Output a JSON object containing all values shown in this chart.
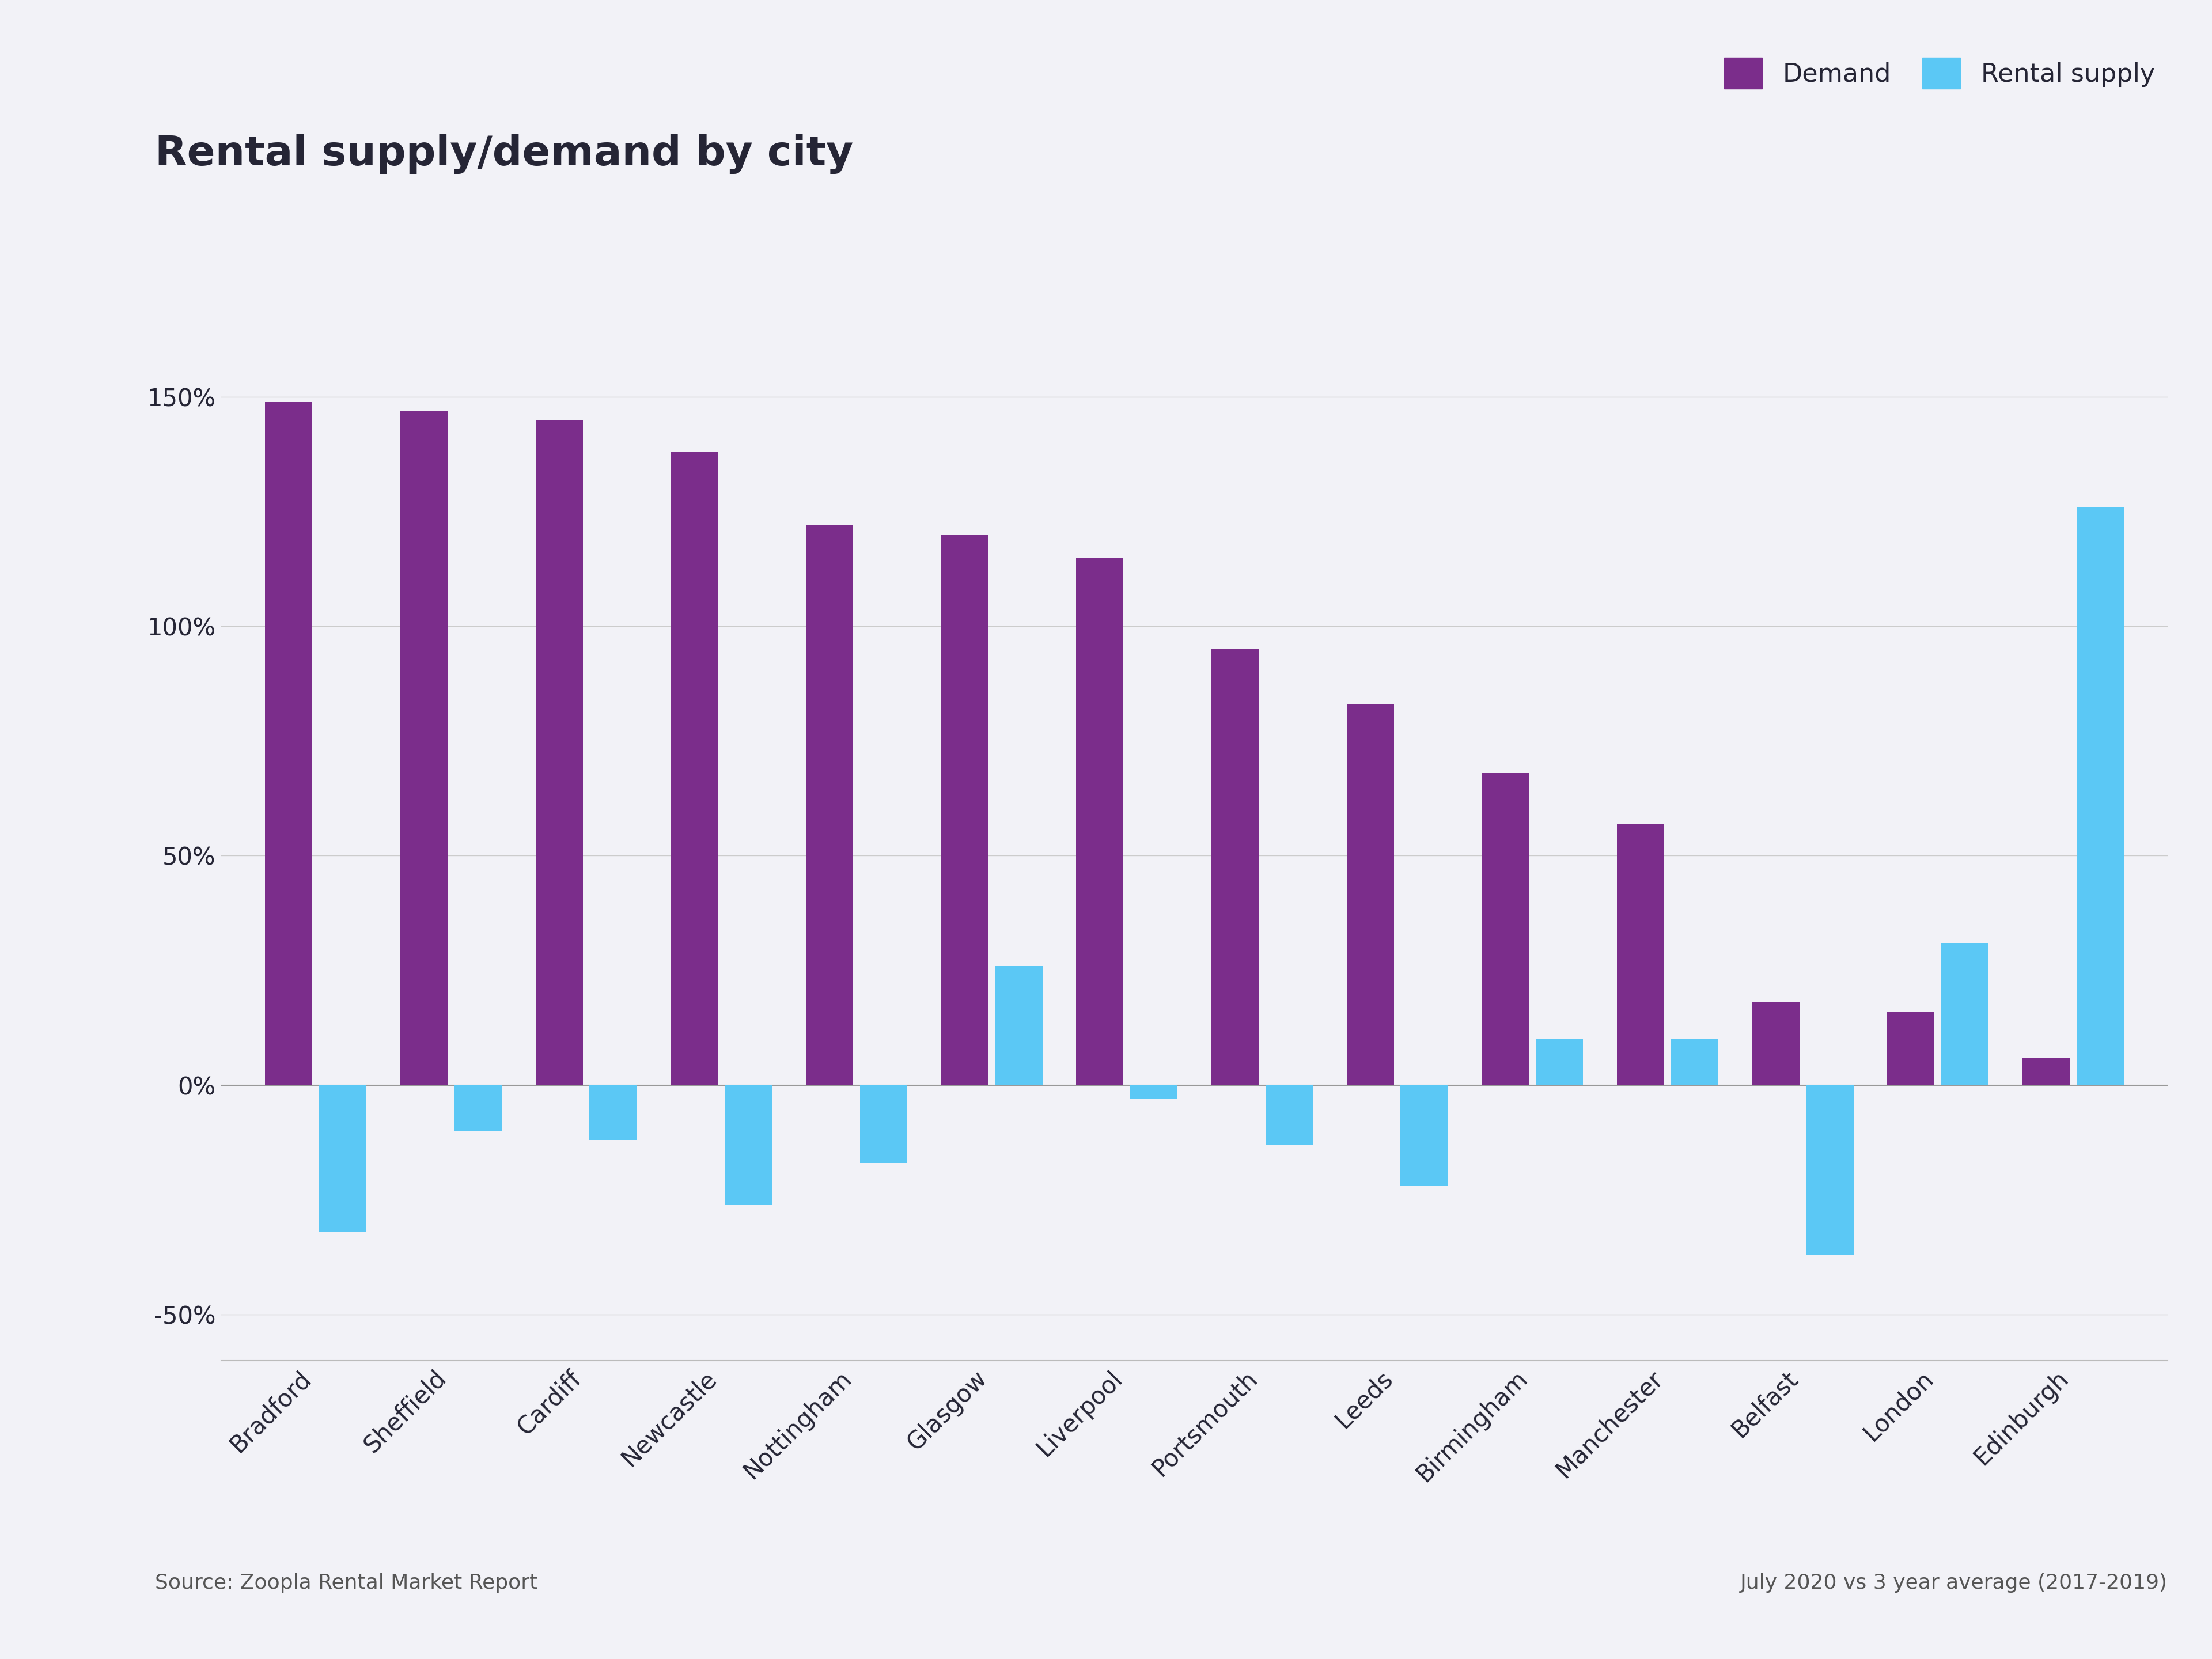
{
  "title": "Rental supply/demand by city",
  "categories": [
    "Bradford",
    "Sheffield",
    "Cardiff",
    "Newcastle",
    "Nottingham",
    "Glasgow",
    "Liverpool",
    "Portsmouth",
    "Leeds",
    "Birmingham",
    "Manchester",
    "Belfast",
    "London",
    "Edinburgh"
  ],
  "demand": [
    149,
    147,
    145,
    138,
    122,
    120,
    115,
    95,
    83,
    68,
    57,
    18,
    16,
    6
  ],
  "supply": [
    -32,
    -10,
    -12,
    -26,
    -17,
    26,
    -3,
    -13,
    -22,
    10,
    10,
    -37,
    31,
    126
  ],
  "demand_color": "#7B2D8B",
  "supply_color": "#5BC8F5",
  "background_color": "#F2F2F7",
  "title_color": "#252535",
  "axis_label_color": "#252535",
  "ylim_min": -60,
  "ylim_max": 175,
  "yticks": [
    -50,
    0,
    50,
    100,
    150
  ],
  "ytick_labels": [
    "-50%",
    "0%",
    "50%",
    "100%",
    "150%"
  ],
  "source_text": "Source: Zoopla Rental Market Report",
  "date_text": "July 2020 vs 3 year average (2017-2019)",
  "legend_demand": "Demand",
  "legend_supply": "Rental supply",
  "title_fontsize": 52,
  "tick_fontsize": 30,
  "legend_fontsize": 32,
  "source_fontsize": 26,
  "bar_width": 0.35,
  "bar_gap": 0.05
}
